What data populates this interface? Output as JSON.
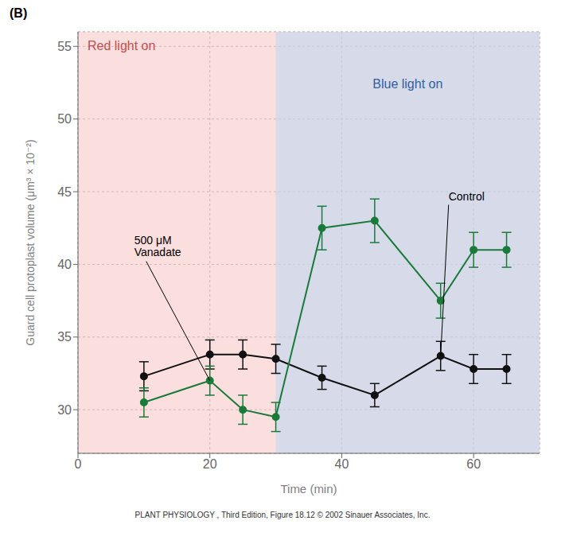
{
  "chart_data": {
    "type": "line",
    "title": "(B)",
    "caption": "PLANT PHYSIOLOGY , Third Edition, Figure 18.12  © 2002 Sinauer Associates, Inc.",
    "x_label": "Time (min)",
    "y_label": "Guard cell protoplast volume (μm³ × 10⁻²)",
    "xlim": [
      0,
      70
    ],
    "ylim": [
      27,
      56
    ],
    "xticks": [
      0,
      20,
      40,
      60
    ],
    "yticks": [
      30,
      35,
      40,
      45,
      50,
      55
    ],
    "grid": true,
    "regions": [
      {
        "label": "Red light on",
        "start": 0,
        "end": 70,
        "color": "#f9c8c8"
      },
      {
        "label": "Blue light on",
        "start": 30,
        "end": 70,
        "color": "#c0d8f0"
      }
    ],
    "series": [
      {
        "name": "Control",
        "color": "#111111",
        "marker": "circle",
        "line_style": "solid",
        "x": [
          10,
          20,
          25,
          30,
          37,
          45,
          55,
          60,
          65
        ],
        "values": [
          32.3,
          33.8,
          33.8,
          33.5,
          32.2,
          31.0,
          33.7,
          32.8,
          32.8
        ],
        "errors": [
          1.0,
          1.0,
          1.0,
          1.0,
          0.8,
          0.8,
          1.0,
          1.0,
          1.0
        ]
      },
      {
        "name": "500 μM\nVanadate",
        "color": "#1a7a3a",
        "marker": "circle",
        "line_style": "solid",
        "x": [
          10,
          20,
          25,
          30,
          37,
          45,
          55,
          60,
          65
        ],
        "values": [
          30.5,
          32.0,
          30.0,
          29.5,
          42.5,
          43.0,
          37.5,
          41.0,
          41.0
        ],
        "errors": [
          1.0,
          1.0,
          1.0,
          1.0,
          1.5,
          1.5,
          1.2,
          1.2,
          1.2
        ]
      }
    ]
  }
}
